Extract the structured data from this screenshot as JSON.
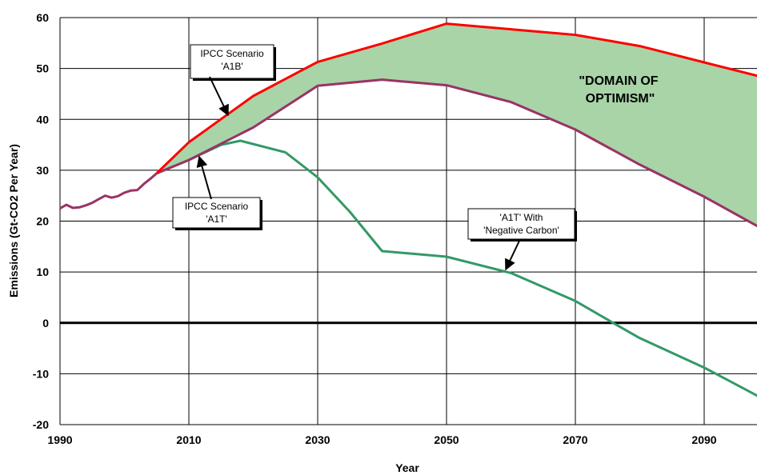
{
  "chart_data": {
    "type": "line",
    "title": "",
    "xlabel": "Year",
    "ylabel": "Emissions (Gt-CO2 Per Year)",
    "xlim": [
      1990,
      2100
    ],
    "ylim": [
      -20,
      60
    ],
    "xticks": [
      1990,
      2010,
      2030,
      2050,
      2070,
      2090
    ],
    "yticks": [
      -20,
      -10,
      0,
      10,
      20,
      30,
      40,
      50,
      60
    ],
    "grid": true,
    "legend": "none",
    "historical": {
      "color": "#993366",
      "points": [
        [
          1990,
          22.5
        ],
        [
          1991,
          23.2
        ],
        [
          1992,
          22.6
        ],
        [
          1993,
          22.7
        ],
        [
          1994,
          23.1
        ],
        [
          1995,
          23.6
        ],
        [
          1996,
          24.3
        ],
        [
          1997,
          25.0
        ],
        [
          1998,
          24.6
        ],
        [
          1999,
          24.9
        ],
        [
          2000,
          25.6
        ],
        [
          2001,
          26.0
        ],
        [
          2002,
          26.1
        ],
        [
          2003,
          27.3
        ],
        [
          2004,
          28.3
        ],
        [
          2005,
          29.4
        ]
      ]
    },
    "series": [
      {
        "color": "#ff0000",
        "points": [
          [
            2005,
            29.4
          ],
          [
            2010,
            35.5
          ],
          [
            2020,
            44.6
          ],
          [
            2030,
            51.3
          ],
          [
            2040,
            54.9
          ],
          [
            2050,
            58.8
          ],
          [
            2060,
            57.7
          ],
          [
            2070,
            56.6
          ],
          [
            2080,
            54.4
          ],
          [
            2090,
            51.2
          ],
          [
            2100,
            48.0
          ]
        ]
      },
      {
        "color": "#993366",
        "points": [
          [
            2005,
            29.4
          ],
          [
            2010,
            32.0
          ],
          [
            2020,
            38.4
          ],
          [
            2030,
            46.6
          ],
          [
            2040,
            47.8
          ],
          [
            2050,
            46.7
          ],
          [
            2060,
            43.4
          ],
          [
            2070,
            38.0
          ],
          [
            2080,
            31.1
          ],
          [
            2090,
            24.8
          ],
          [
            2100,
            17.8
          ]
        ]
      },
      {
        "color": "#339966",
        "points": [
          [
            2005,
            29.4
          ],
          [
            2010,
            32.0
          ],
          [
            2015,
            35.0
          ],
          [
            2018,
            35.8
          ],
          [
            2025,
            33.5
          ],
          [
            2030,
            28.6
          ],
          [
            2035,
            21.8
          ],
          [
            2040,
            14.1
          ],
          [
            2050,
            13.0
          ],
          [
            2060,
            9.8
          ],
          [
            2070,
            4.3
          ],
          [
            2076,
            -0.1
          ],
          [
            2080,
            -3.0
          ],
          [
            2090,
            -8.8
          ],
          [
            2100,
            -15.5
          ]
        ]
      }
    ],
    "fill_between": {
      "color": "#a8d4a8"
    },
    "annotations": [
      {
        "id": "a1b",
        "lines": [
          "IPCC Scenario",
          "'A1B'"
        ]
      },
      {
        "id": "a1t",
        "lines": [
          "IPCC Scenario",
          "'A1T'"
        ]
      },
      {
        "id": "neg",
        "lines": [
          "'A1T' With",
          "'Negative Carbon'"
        ]
      }
    ],
    "domain_label": [
      "\"DOMAIN OF",
      "OPTIMISM\""
    ]
  }
}
